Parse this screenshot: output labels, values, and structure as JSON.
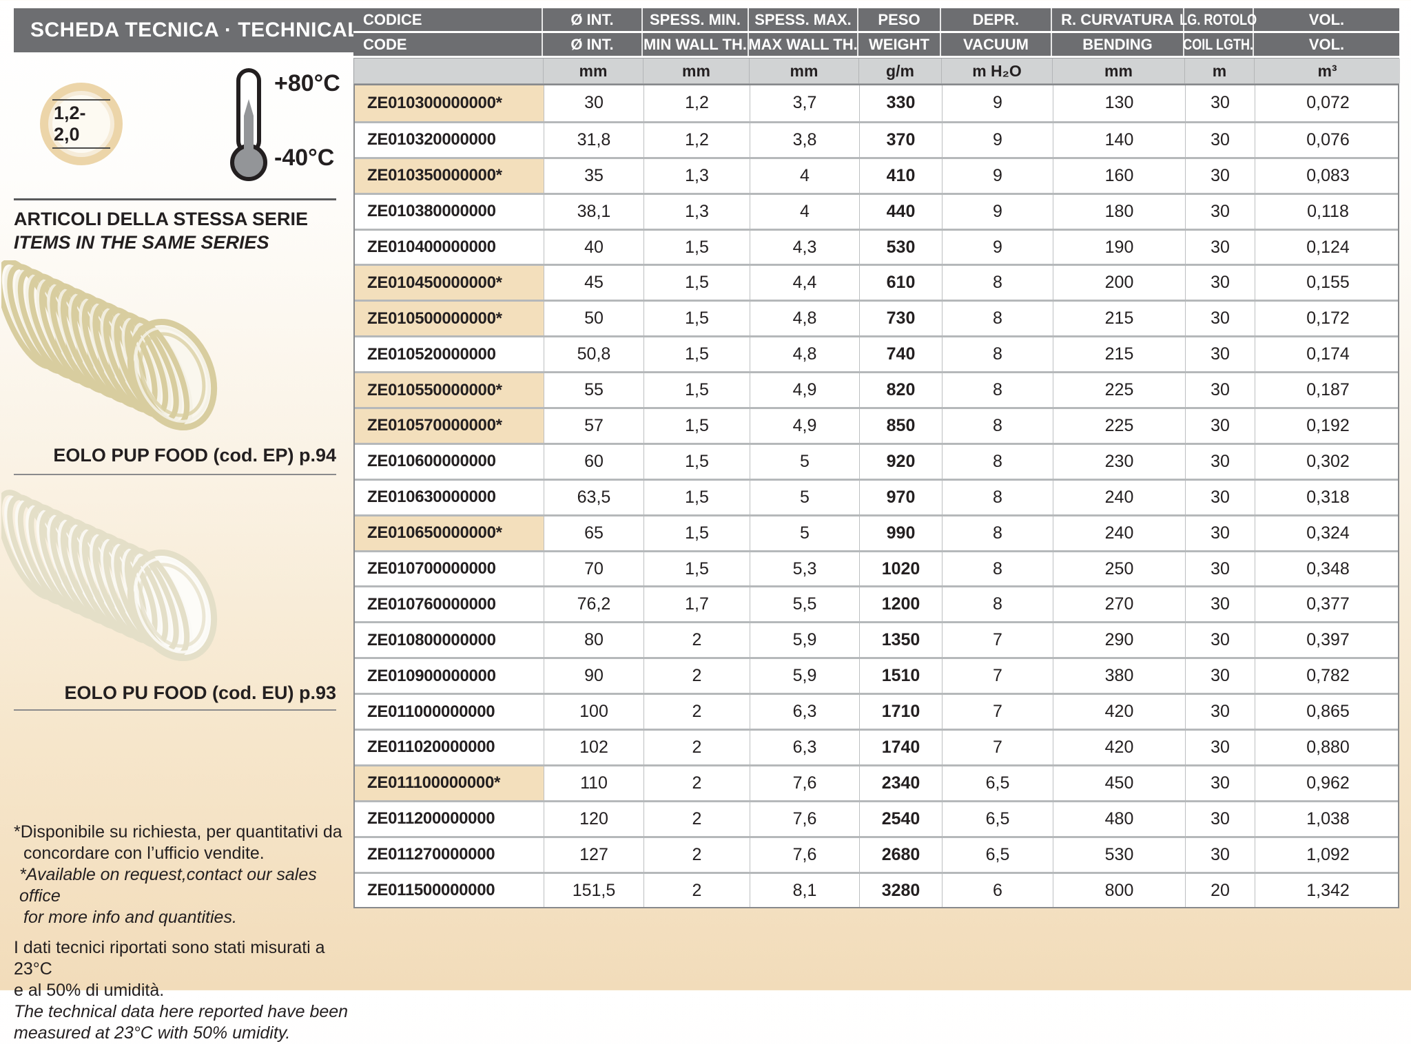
{
  "sidebar": {
    "header": "SCHEDA TECNICA · TECHNICAL DATA",
    "wall_thickness_badge": "1,2-2,0",
    "temp_max": "+80°C",
    "temp_min": "-40°C",
    "series_title_it": "ARTICOLI DELLA STESSA SERIE",
    "series_title_en": "ITEMS IN THE SAME SERIES",
    "product1_caption": "EOLO PUP FOOD (cod. EP) p.94",
    "product2_caption": "EOLO PU FOOD (cod. EU) p.93",
    "footnotes": {
      "it1": "*Disponibile su richiesta, per quantitativi da",
      "it2": "concordare con l’ufficio vendite.",
      "en1": "*Available on request,contact our sales office",
      "en2": "for more info and quantities.",
      "it3": "I dati tecnici riportati sono stati misurati a 23°C",
      "it4": "e al 50% di umidità.",
      "en3": "The technical data here reported have been",
      "en4": "measured at 23°C with 50% umidity."
    }
  },
  "table": {
    "header_row1": [
      "CODICE",
      "Ø INT.",
      "SPESS. MIN.",
      "SPESS. MAX.",
      "PESO",
      "DEPR.",
      "R. CURVATURA",
      "LG. ROTOLO",
      "VOL."
    ],
    "header_row2": [
      "CODE",
      "Ø INT.",
      "MIN WALL TH.",
      "MAX WALL TH.",
      "WEIGHT",
      "VACUUM",
      "BENDING",
      "COIL LGTH.",
      "VOL."
    ],
    "units": [
      "",
      "mm",
      "mm",
      "mm",
      "g/m",
      "m H₂O",
      "mm",
      "m",
      "m³"
    ],
    "header_color": "#6d6e71",
    "highlight_color": "#f3dfbc",
    "rows": [
      {
        "code": "ZE010300000000*",
        "highlighted": true,
        "values": [
          "30",
          "1,2",
          "3,7",
          "330",
          "9",
          "130",
          "30",
          "0,072"
        ]
      },
      {
        "code": "ZE010320000000",
        "highlighted": false,
        "values": [
          "31,8",
          "1,2",
          "3,8",
          "370",
          "9",
          "140",
          "30",
          "0,076"
        ]
      },
      {
        "code": "ZE010350000000*",
        "highlighted": true,
        "values": [
          "35",
          "1,3",
          "4",
          "410",
          "9",
          "160",
          "30",
          "0,083"
        ]
      },
      {
        "code": "ZE010380000000",
        "highlighted": false,
        "values": [
          "38,1",
          "1,3",
          "4",
          "440",
          "9",
          "180",
          "30",
          "0,118"
        ]
      },
      {
        "code": "ZE010400000000",
        "highlighted": false,
        "values": [
          "40",
          "1,5",
          "4,3",
          "530",
          "9",
          "190",
          "30",
          "0,124"
        ]
      },
      {
        "code": "ZE010450000000*",
        "highlighted": true,
        "values": [
          "45",
          "1,5",
          "4,4",
          "610",
          "8",
          "200",
          "30",
          "0,155"
        ]
      },
      {
        "code": "ZE010500000000*",
        "highlighted": true,
        "values": [
          "50",
          "1,5",
          "4,8",
          "730",
          "8",
          "215",
          "30",
          "0,172"
        ]
      },
      {
        "code": "ZE010520000000",
        "highlighted": false,
        "values": [
          "50,8",
          "1,5",
          "4,8",
          "740",
          "8",
          "215",
          "30",
          "0,174"
        ]
      },
      {
        "code": "ZE010550000000*",
        "highlighted": true,
        "values": [
          "55",
          "1,5",
          "4,9",
          "820",
          "8",
          "225",
          "30",
          "0,187"
        ]
      },
      {
        "code": "ZE010570000000*",
        "highlighted": true,
        "values": [
          "57",
          "1,5",
          "4,9",
          "850",
          "8",
          "225",
          "30",
          "0,192"
        ]
      },
      {
        "code": "ZE010600000000",
        "highlighted": false,
        "values": [
          "60",
          "1,5",
          "5",
          "920",
          "8",
          "230",
          "30",
          "0,302"
        ]
      },
      {
        "code": "ZE010630000000",
        "highlighted": false,
        "values": [
          "63,5",
          "1,5",
          "5",
          "970",
          "8",
          "240",
          "30",
          "0,318"
        ]
      },
      {
        "code": "ZE010650000000*",
        "highlighted": true,
        "values": [
          "65",
          "1,5",
          "5",
          "990",
          "8",
          "240",
          "30",
          "0,324"
        ]
      },
      {
        "code": "ZE010700000000",
        "highlighted": false,
        "values": [
          "70",
          "1,5",
          "5,3",
          "1020",
          "8",
          "250",
          "30",
          "0,348"
        ]
      },
      {
        "code": "ZE010760000000",
        "highlighted": false,
        "values": [
          "76,2",
          "1,7",
          "5,5",
          "1200",
          "8",
          "270",
          "30",
          "0,377"
        ]
      },
      {
        "code": "ZE010800000000",
        "highlighted": false,
        "values": [
          "80",
          "2",
          "5,9",
          "1350",
          "7",
          "290",
          "30",
          "0,397"
        ]
      },
      {
        "code": "ZE010900000000",
        "highlighted": false,
        "values": [
          "90",
          "2",
          "5,9",
          "1510",
          "7",
          "380",
          "30",
          "0,782"
        ]
      },
      {
        "code": "ZE011000000000",
        "highlighted": false,
        "values": [
          "100",
          "2",
          "6,3",
          "1710",
          "7",
          "420",
          "30",
          "0,865"
        ]
      },
      {
        "code": "ZE011020000000",
        "highlighted": false,
        "values": [
          "102",
          "2",
          "6,3",
          "1740",
          "7",
          "420",
          "30",
          "0,880"
        ]
      },
      {
        "code": "ZE011100000000*",
        "highlighted": true,
        "values": [
          "110",
          "2",
          "7,6",
          "2340",
          "6,5",
          "450",
          "30",
          "0,962"
        ]
      },
      {
        "code": "ZE011200000000",
        "highlighted": false,
        "values": [
          "120",
          "2",
          "7,6",
          "2540",
          "6,5",
          "480",
          "30",
          "1,038"
        ]
      },
      {
        "code": "ZE011270000000",
        "highlighted": false,
        "values": [
          "127",
          "2",
          "7,6",
          "2680",
          "6,5",
          "530",
          "30",
          "1,092"
        ]
      },
      {
        "code": "ZE011500000000",
        "highlighted": false,
        "values": [
          "151,5",
          "2",
          "8,1",
          "3280",
          "6",
          "800",
          "20",
          "1,342"
        ]
      }
    ]
  }
}
